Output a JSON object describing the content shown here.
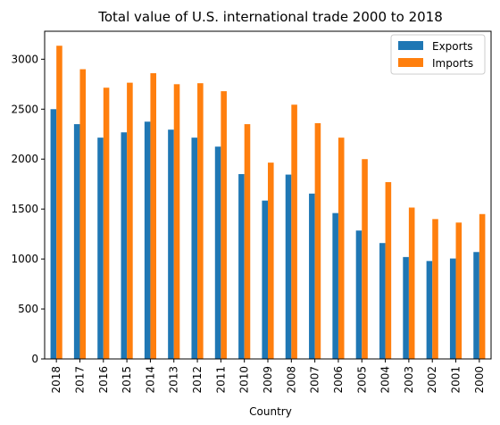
{
  "chart_data": {
    "type": "bar",
    "title": "Total value of U.S. international trade 2000 to 2018",
    "xlabel": "Country",
    "ylabel": "",
    "ylim": [
      0,
      3280
    ],
    "yticks": [
      0,
      500,
      1000,
      1500,
      2000,
      2500,
      3000
    ],
    "grid": false,
    "legend_position": "top-right",
    "categories": [
      "2018",
      "2017",
      "2016",
      "2015",
      "2014",
      "2013",
      "2012",
      "2011",
      "2010",
      "2009",
      "2008",
      "2007",
      "2006",
      "2005",
      "2004",
      "2003",
      "2002",
      "2001",
      "2000"
    ],
    "series": [
      {
        "name": "Exports",
        "color": "#1f77b4",
        "values": [
          2500,
          2350,
          2215,
          2268,
          2375,
          2295,
          2215,
          2125,
          1850,
          1585,
          1845,
          1655,
          1460,
          1285,
          1160,
          1020,
          980,
          1005,
          1070
        ]
      },
      {
        "name": "Imports",
        "color": "#ff7f0e",
        "values": [
          3135,
          2900,
          2715,
          2765,
          2860,
          2750,
          2760,
          2680,
          2350,
          1965,
          2545,
          2360,
          2215,
          2000,
          1770,
          1515,
          1400,
          1365,
          1450
        ]
      }
    ]
  }
}
